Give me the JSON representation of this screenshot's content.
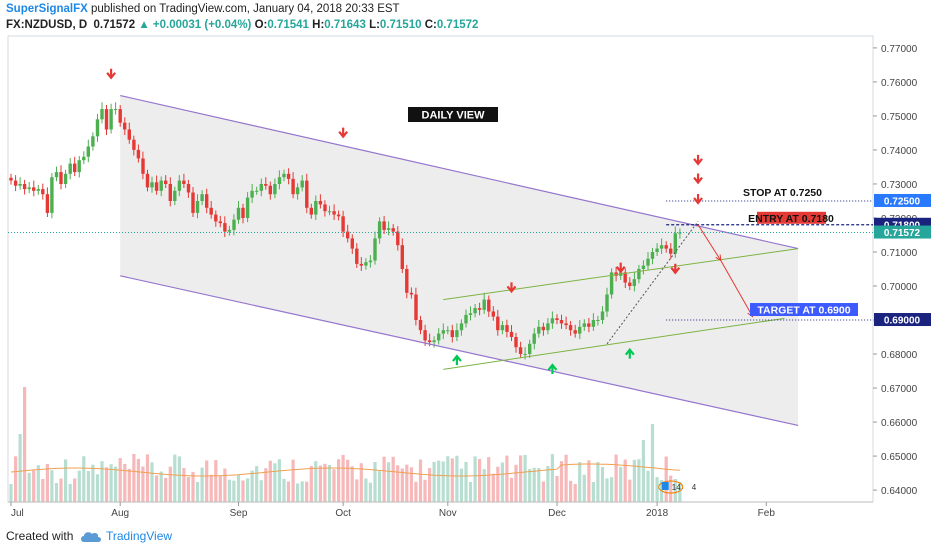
{
  "header": {
    "author": "SuperSignalFX",
    "published_text": "published on TradingView.com, January 04, 2018 20:33 EST",
    "symbol": "FX:NZDUSD, D",
    "last": "0.71572",
    "change": "+0.00031 (+0.04%)",
    "o_label": "O:",
    "o_value": "0.71541",
    "h_label": "H:",
    "h_value": "0.71643",
    "l_label": "L:",
    "l_value": "0.71510",
    "c_label": "C:",
    "c_value": "0.71572"
  },
  "footer": {
    "created_with": "Created with",
    "brand": "TradingView"
  },
  "chart_data": {
    "type": "candlestick",
    "symbol": "FX:NZDUSD",
    "timeframe": "D",
    "view_label": "DAILY VIEW",
    "ylim": [
      0.6365,
      0.7735
    ],
    "y_ticks": [
      "0.77000",
      "0.76000",
      "0.75000",
      "0.74000",
      "0.73000",
      "0.72000",
      "0.71000",
      "0.70000",
      "0.69000",
      "0.68000",
      "0.67000",
      "0.66000",
      "0.65000",
      "0.64000"
    ],
    "x_ticks": [
      {
        "label": "Jul",
        "index": 0
      },
      {
        "label": "Aug",
        "index": 24
      },
      {
        "label": "Sep",
        "index": 50
      },
      {
        "label": "Oct",
        "index": 73
      },
      {
        "label": "Nov",
        "index": 96
      },
      {
        "label": "Dec",
        "index": 120
      },
      {
        "label": "2018",
        "index": 142
      },
      {
        "label": "Feb",
        "index": 166
      }
    ],
    "closes": [
      0.731,
      0.7295,
      0.73,
      0.7285,
      0.729,
      0.728,
      0.7285,
      0.727,
      0.7215,
      0.732,
      0.7335,
      0.73,
      0.733,
      0.736,
      0.7335,
      0.737,
      0.738,
      0.741,
      0.744,
      0.749,
      0.752,
      0.746,
      0.752,
      0.752,
      0.748,
      0.746,
      0.743,
      0.74,
      0.7375,
      0.733,
      0.729,
      0.7305,
      0.728,
      0.731,
      0.73,
      0.725,
      0.728,
      0.731,
      0.73,
      0.7275,
      0.7215,
      0.725,
      0.727,
      0.723,
      0.721,
      0.719,
      0.7185,
      0.716,
      0.7165,
      0.7195,
      0.723,
      0.72,
      0.726,
      0.728,
      0.728,
      0.73,
      0.7295,
      0.727,
      0.73,
      0.732,
      0.733,
      0.7315,
      0.727,
      0.729,
      0.731,
      0.723,
      0.721,
      0.725,
      0.724,
      0.722,
      0.722,
      0.721,
      0.7205,
      0.716,
      0.714,
      0.711,
      0.7065,
      0.706,
      0.707,
      0.7075,
      0.714,
      0.719,
      0.7165,
      0.717,
      0.716,
      0.712,
      0.705,
      0.698,
      0.6975,
      0.69,
      0.687,
      0.684,
      0.6835,
      0.684,
      0.686,
      0.687,
      0.687,
      0.685,
      0.687,
      0.689,
      0.6915,
      0.692,
      0.6935,
      0.693,
      0.696,
      0.6925,
      0.691,
      0.687,
      0.6885,
      0.6865,
      0.685,
      0.682,
      0.68,
      0.68,
      0.683,
      0.686,
      0.688,
      0.687,
      0.689,
      0.6905,
      0.69,
      0.689,
      0.6885,
      0.687,
      0.686,
      0.688,
      0.689,
      0.688,
      0.69,
      0.69,
      0.6925,
      0.6975,
      0.704,
      0.703,
      0.704,
      0.701,
      0.7,
      0.702,
      0.705,
      0.706,
      0.708,
      0.71,
      0.711,
      0.712,
      0.711,
      0.7095,
      0.7155,
      0.7157
    ],
    "candle_range": "2017-07-03 to 2018-01-04",
    "annotations": {
      "stop": {
        "text": "STOP AT 0.7250",
        "price": 0.725,
        "label": "0.72500"
      },
      "entry": {
        "text": "ENTRY AT 0.7180",
        "price": 0.718,
        "label": "0.71800"
      },
      "target": {
        "text": "TARGET AT 0.6900",
        "price": 0.69,
        "label": "0.69000"
      },
      "last_price": {
        "price": 0.71572,
        "label": "0.71572"
      }
    },
    "channel": {
      "upper": [
        {
          "i": 24,
          "p": 0.756
        },
        {
          "i": 173,
          "p": 0.711
        }
      ],
      "lower": [
        {
          "i": 24,
          "p": 0.703
        },
        {
          "i": 173,
          "p": 0.659
        }
      ]
    },
    "rising_wedge": {
      "upper": [
        {
          "i": 95,
          "p": 0.696
        },
        {
          "i": 173,
          "p": 0.711
        }
      ],
      "lower": [
        {
          "i": 95,
          "p": 0.6755
        },
        {
          "i": 170,
          "p": 0.6905
        }
      ]
    },
    "projection_path": [
      {
        "i": 151,
        "p": 0.718
      },
      {
        "i": 156,
        "p": 0.7075
      },
      {
        "i": 163,
        "p": 0.691
      }
    ],
    "down_arrows": [
      {
        "i": 22,
        "p": 0.7618
      },
      {
        "i": 73,
        "p": 0.7445
      },
      {
        "i": 110,
        "p": 0.699
      },
      {
        "i": 134,
        "p": 0.7048
      },
      {
        "i": 146,
        "p": 0.7045
      },
      {
        "i": 151,
        "p": 0.7365
      },
      {
        "i": 151,
        "p": 0.731
      },
      {
        "i": 151,
        "p": 0.725
      }
    ],
    "up_arrows": [
      {
        "i": 98,
        "p": 0.6788
      },
      {
        "i": 119,
        "p": 0.6762
      },
      {
        "i": 136,
        "p": 0.6807
      }
    ],
    "badge_text": "14",
    "badge_text2": "4",
    "legend": "none",
    "grid": false
  }
}
